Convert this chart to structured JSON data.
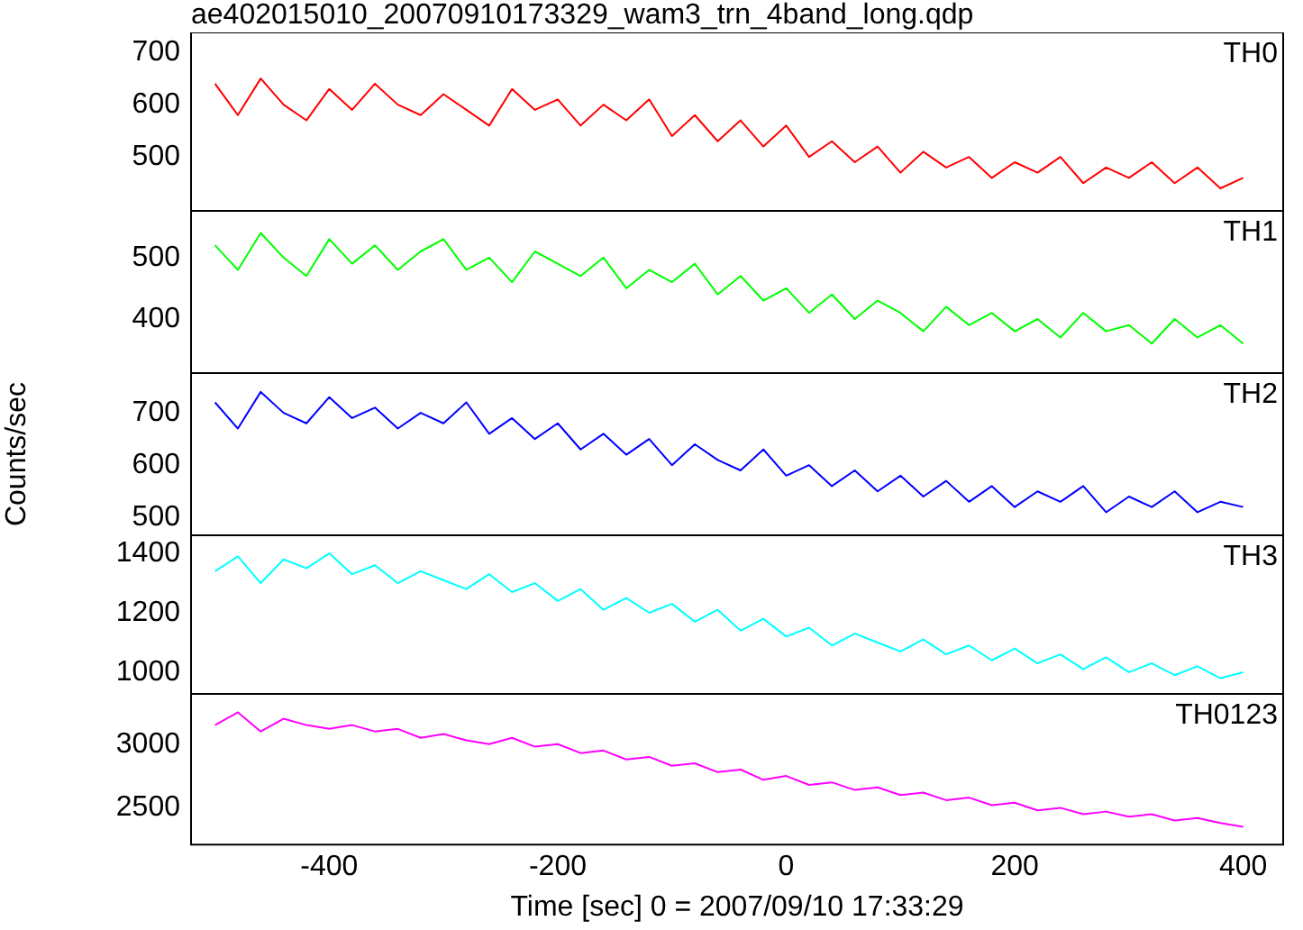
{
  "chart_data": [
    {
      "type": "line",
      "title": "ae402015010_20070910173329_wam3_trn_4band_long.qdp",
      "marker": "none",
      "tick_labels": "y",
      "x": [
        -500,
        -480,
        -460,
        -440,
        -420,
        -400,
        -380,
        -360,
        -340,
        -320,
        -300,
        -280,
        -260,
        -240,
        -220,
        -200,
        -180,
        -160,
        -140,
        -120,
        -100,
        -80,
        -60,
        -40,
        -20,
        0,
        20,
        40,
        60,
        80,
        100,
        120,
        140,
        160,
        180,
        200,
        220,
        240,
        260,
        280,
        300,
        320,
        340,
        360,
        380,
        400
      ],
      "xlim": [
        -521,
        435
      ],
      "xticks": [
        -400,
        -200,
        0,
        200,
        400
      ],
      "ylim": [
        397,
        738
      ],
      "yticks": [
        500,
        600,
        700
      ],
      "series": [
        {
          "name": "TH0",
          "color": "#ff0000",
          "values": [
            640,
            580,
            650,
            600,
            570,
            630,
            590,
            640,
            600,
            580,
            620,
            590,
            560,
            630,
            590,
            610,
            560,
            600,
            570,
            610,
            540,
            580,
            530,
            570,
            520,
            560,
            500,
            530,
            490,
            520,
            470,
            510,
            480,
            500,
            460,
            490,
            470,
            500,
            450,
            480,
            460,
            490,
            450,
            480,
            440,
            460
          ]
        }
      ]
    },
    {
      "type": "line",
      "marker": "none",
      "tick_labels": "y",
      "x": [
        -500,
        -480,
        -460,
        -440,
        -420,
        -400,
        -380,
        -360,
        -340,
        -320,
        -300,
        -280,
        -260,
        -240,
        -220,
        -200,
        -180,
        -160,
        -140,
        -120,
        -100,
        -80,
        -60,
        -40,
        -20,
        0,
        20,
        40,
        60,
        80,
        100,
        120,
        140,
        160,
        180,
        200,
        220,
        240,
        260,
        280,
        300,
        320,
        340,
        360,
        380,
        400
      ],
      "xlim": [
        -521,
        435
      ],
      "xticks": [
        -400,
        -200,
        0,
        200,
        400
      ],
      "ylim": [
        312,
        576
      ],
      "yticks": [
        400,
        500
      ],
      "series": [
        {
          "name": "TH1",
          "color": "#00ff00",
          "values": [
            520,
            480,
            540,
            500,
            470,
            530,
            490,
            520,
            480,
            510,
            530,
            480,
            500,
            460,
            510,
            490,
            470,
            500,
            450,
            480,
            460,
            490,
            440,
            470,
            430,
            450,
            410,
            440,
            400,
            430,
            410,
            380,
            420,
            390,
            410,
            380,
            400,
            370,
            410,
            380,
            390,
            360,
            400,
            370,
            390,
            360
          ]
        }
      ]
    },
    {
      "type": "line",
      "ylabel": "Counts/sec",
      "marker": "none",
      "tick_labels": "y",
      "x": [
        -500,
        -480,
        -460,
        -440,
        -420,
        -400,
        -380,
        -360,
        -340,
        -320,
        -300,
        -280,
        -260,
        -240,
        -220,
        -200,
        -180,
        -160,
        -140,
        -120,
        -100,
        -80,
        -60,
        -40,
        -20,
        0,
        20,
        40,
        60,
        80,
        100,
        120,
        140,
        160,
        180,
        200,
        220,
        240,
        260,
        280,
        300,
        320,
        340,
        360,
        380,
        400
      ],
      "xlim": [
        -521,
        435
      ],
      "xticks": [
        -400,
        -200,
        0,
        200,
        400
      ],
      "ylim": [
        466,
        776
      ],
      "yticks": [
        500,
        600,
        700
      ],
      "series": [
        {
          "name": "TH2",
          "color": "#0000ff",
          "values": [
            720,
            670,
            740,
            700,
            680,
            730,
            690,
            710,
            670,
            700,
            680,
            720,
            660,
            690,
            650,
            680,
            630,
            660,
            620,
            650,
            600,
            640,
            610,
            590,
            630,
            580,
            600,
            560,
            590,
            550,
            580,
            540,
            570,
            530,
            560,
            520,
            550,
            530,
            560,
            510,
            540,
            520,
            550,
            510,
            530,
            520
          ]
        }
      ]
    },
    {
      "type": "line",
      "marker": "none",
      "tick_labels": "y",
      "x": [
        -500,
        -480,
        -460,
        -440,
        -420,
        -400,
        -380,
        -360,
        -340,
        -320,
        -300,
        -280,
        -260,
        -240,
        -220,
        -200,
        -180,
        -160,
        -140,
        -120,
        -100,
        -80,
        -60,
        -40,
        -20,
        0,
        20,
        40,
        60,
        80,
        100,
        120,
        140,
        160,
        180,
        200,
        220,
        240,
        260,
        280,
        300,
        320,
        340,
        360,
        380,
        400
      ],
      "xlim": [
        -521,
        435
      ],
      "xticks": [
        -400,
        -200,
        0,
        200,
        400
      ],
      "ylim": [
        927,
        1461
      ],
      "yticks": [
        1000,
        1200,
        1400
      ],
      "series": [
        {
          "name": "TH3",
          "color": "#00ffff",
          "values": [
            1340,
            1390,
            1300,
            1380,
            1350,
            1400,
            1330,
            1360,
            1300,
            1340,
            1310,
            1280,
            1330,
            1270,
            1300,
            1240,
            1280,
            1210,
            1250,
            1200,
            1230,
            1170,
            1210,
            1140,
            1180,
            1120,
            1150,
            1090,
            1130,
            1100,
            1070,
            1110,
            1060,
            1090,
            1040,
            1080,
            1030,
            1060,
            1010,
            1050,
            1000,
            1030,
            990,
            1020,
            980,
            1000
          ]
        }
      ]
    },
    {
      "type": "line",
      "xlabel": "Time [sec] 0 = 2007/09/10 17:33:29",
      "marker": "none",
      "x": [
        -500,
        -480,
        -460,
        -440,
        -420,
        -400,
        -380,
        -360,
        -340,
        -320,
        -300,
        -280,
        -260,
        -240,
        -220,
        -200,
        -180,
        -160,
        -140,
        -120,
        -100,
        -80,
        -60,
        -40,
        -20,
        0,
        20,
        40,
        60,
        80,
        100,
        120,
        140,
        160,
        180,
        200,
        220,
        240,
        260,
        280,
        300,
        320,
        340,
        360,
        380,
        400
      ],
      "xlim": [
        -521,
        435
      ],
      "xticks": [
        -400,
        -200,
        0,
        200,
        400
      ],
      "ylim": [
        2211,
        3395
      ],
      "yticks": [
        2500,
        3000
      ],
      "series": [
        {
          "name": "TH0123",
          "color": "#ff00ff",
          "values": [
            3150,
            3250,
            3100,
            3200,
            3150,
            3120,
            3150,
            3100,
            3120,
            3050,
            3080,
            3030,
            3000,
            3050,
            2980,
            3000,
            2930,
            2950,
            2880,
            2900,
            2830,
            2850,
            2780,
            2800,
            2720,
            2750,
            2680,
            2700,
            2640,
            2660,
            2600,
            2620,
            2560,
            2580,
            2520,
            2540,
            2480,
            2500,
            2450,
            2470,
            2430,
            2450,
            2400,
            2420,
            2380,
            2350
          ]
        }
      ]
    }
  ]
}
